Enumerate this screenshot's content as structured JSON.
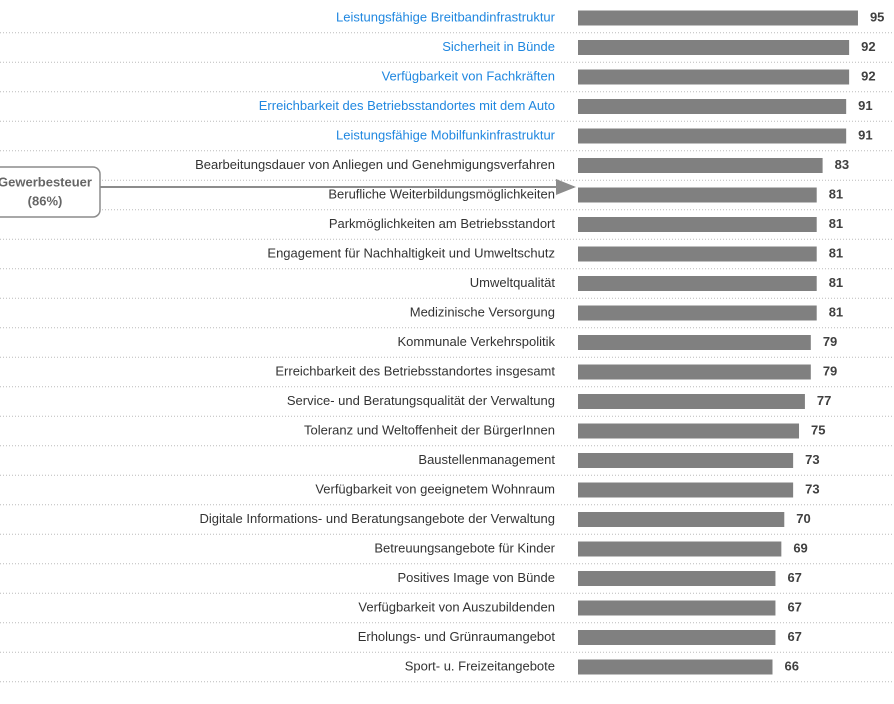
{
  "chart_data": {
    "type": "bar",
    "orientation": "horizontal",
    "categories": [
      "Leistungsfähige Breitbandinfrastruktur",
      "Sicherheit in Bünde",
      "Verfügbarkeit von Fachkräften",
      "Erreichbarkeit des Betriebsstandortes mit dem Auto",
      "Leistungsfähige Mobilfunkinfrastruktur",
      "Bearbeitungsdauer von Anliegen und Genehmigungsverfahren",
      "Berufliche Weiterbildungsmöglichkeiten",
      "Parkmöglichkeiten am Betriebsstandort",
      "Engagement für Nachhaltigkeit und Umweltschutz",
      "Umweltqualität",
      "Medizinische Versorgung",
      "Kommunale Verkehrspolitik",
      "Erreichbarkeit des Betriebsstandortes insgesamt",
      "Service- und Beratungsqualität der Verwaltung",
      "Toleranz und Weltoffenheit der BürgerInnen",
      "Baustellenmanagement",
      "Verfügbarkeit von geeignetem Wohnraum",
      "Digitale Informations- und Beratungsangebote der Verwaltung",
      "Betreuungsangebote für Kinder",
      "Positives Image von Bünde",
      "Verfügbarkeit von Auszubildenden",
      "Erholungs- und Grünraumangebot",
      "Sport- u. Freizeitangebote"
    ],
    "values": [
      95,
      92,
      92,
      91,
      91,
      83,
      81,
      81,
      81,
      81,
      81,
      79,
      79,
      77,
      75,
      73,
      73,
      70,
      69,
      67,
      67,
      67,
      66
    ],
    "color": "#808080",
    "category_colors": [
      "#1f87e0",
      "#1f87e0",
      "#1f87e0",
      "#1f87e0",
      "#1f87e0",
      "#333333",
      "#333333",
      "#333333",
      "#333333",
      "#333333",
      "#333333",
      "#333333",
      "#333333",
      "#333333",
      "#333333",
      "#333333",
      "#333333",
      "#333333",
      "#333333",
      "#333333",
      "#333333",
      "#333333",
      "#333333"
    ],
    "annotation": {
      "lines": [
        "Gewerbesteuer",
        "(86%)"
      ]
    }
  }
}
